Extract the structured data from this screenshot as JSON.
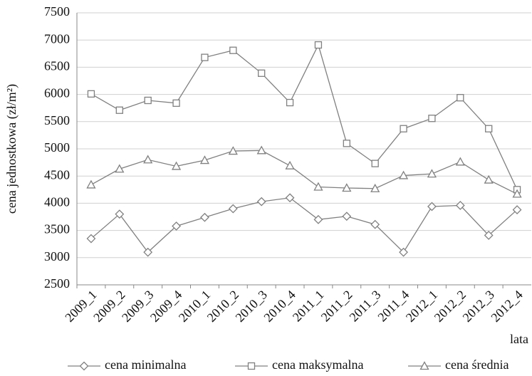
{
  "chart_data": {
    "type": "line",
    "y_label": "cena jednostkowa (zł/m²)",
    "x_label": "lata",
    "categories": [
      "2009_1",
      "2009_2",
      "2009_3",
      "2009_4",
      "2010_1",
      "2010_2",
      "2010_3",
      "2010_4",
      "2011_1",
      "2011_2",
      "2011_3",
      "2011_4",
      "2012_1",
      "2012_2",
      "2012_3",
      "2012_4"
    ],
    "series": [
      {
        "name": "cena minimalna",
        "color": "#808080",
        "marker": "diamond",
        "values": [
          3350,
          3800,
          3100,
          3580,
          3740,
          3900,
          4030,
          4100,
          3700,
          3760,
          3610,
          3100,
          3940,
          3960,
          3410,
          3880
        ]
      },
      {
        "name": "cena maksymalna",
        "color": "#808080",
        "marker": "square",
        "values": [
          6010,
          5710,
          5890,
          5840,
          6680,
          6810,
          6390,
          5850,
          6910,
          5100,
          4730,
          5370,
          5560,
          5940,
          5370,
          4250
        ]
      },
      {
        "name": "cena średnia",
        "color": "#808080",
        "marker": "triangle",
        "values": [
          4340,
          4630,
          4800,
          4680,
          4790,
          4960,
          4970,
          4690,
          4300,
          4280,
          4270,
          4510,
          4540,
          4760,
          4430,
          4170
        ]
      }
    ],
    "ylim": [
      2500,
      7500
    ],
    "yticks": [
      2500,
      3000,
      3500,
      4000,
      4500,
      5000,
      5500,
      6000,
      6500,
      7000,
      7500
    ],
    "grid": true,
    "legend": "bottom"
  }
}
